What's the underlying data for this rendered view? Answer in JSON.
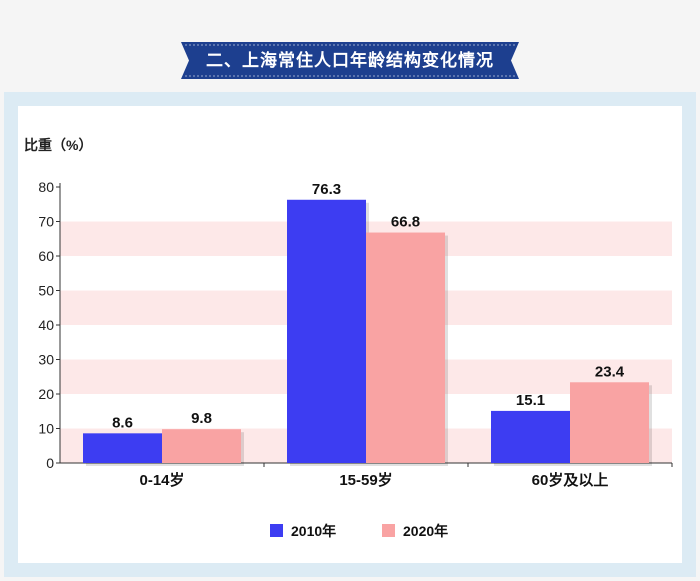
{
  "header": {
    "title": "二、上海常住人口年龄结构变化情况"
  },
  "colors": {
    "series_2010": "#3d3df2",
    "series_2020": "#f9a3a3",
    "band": "#fde8e8",
    "banner": "#1d3f8f",
    "panel_frame": "#dcebf4"
  },
  "chart_data": {
    "type": "bar",
    "categories": [
      "0-14岁",
      "15-59岁",
      "60岁及以上"
    ],
    "series": [
      {
        "name": "2010年",
        "values": [
          8.6,
          76.3,
          15.1
        ]
      },
      {
        "name": "2020年",
        "values": [
          9.8,
          66.8,
          23.4
        ]
      }
    ],
    "ylabel": "比重（%）",
    "xlabel": "",
    "ylim": [
      0,
      80
    ],
    "yticks": [
      0,
      10,
      20,
      30,
      40,
      50,
      60,
      70,
      80
    ],
    "value_labels": [
      "8.6",
      "9.8",
      "76.3",
      "66.8",
      "15.1",
      "23.4"
    ],
    "legend_position": "bottom-center",
    "grid": "alternating horizontal bands"
  }
}
